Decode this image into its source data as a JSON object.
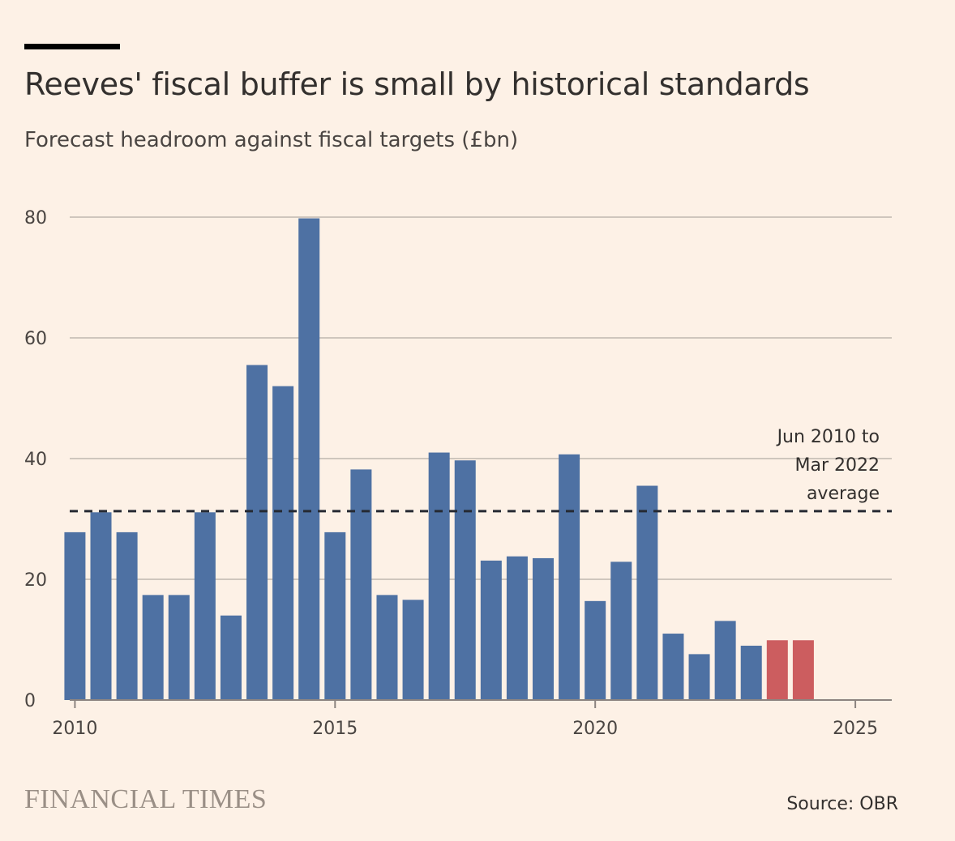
{
  "header": {
    "title": "Reeves' fiscal buffer is small by historical standards",
    "subtitle": "Forecast headroom against fiscal targets (£bn)"
  },
  "footer": {
    "brand": "FINANCIAL TIMES",
    "source": "Source: OBR"
  },
  "colors": {
    "background": "#FDF1E6",
    "bar_primary": "#4E71A3",
    "bar_highlight": "#CC5D5F",
    "average_line": "#262A33",
    "grid": "#CFC6BD"
  },
  "chart_data": {
    "type": "bar",
    "title": "Reeves' fiscal buffer is small by historical standards",
    "subtitle": "Forecast headroom against fiscal targets (£bn)",
    "ylim": [
      0,
      80
    ],
    "xlim": [
      2009.9,
      2025.7
    ],
    "yticks": [
      0,
      20,
      40,
      60,
      80
    ],
    "xticks": [
      {
        "value": 2010,
        "label": "2010"
      },
      {
        "value": 2015,
        "label": "2015"
      },
      {
        "value": 2020,
        "label": "2020"
      },
      {
        "value": 2025,
        "label": "2025"
      }
    ],
    "grid": true,
    "bars": [
      {
        "x": 2010.0,
        "value": 27.8,
        "highlight": false
      },
      {
        "x": 2010.5,
        "value": 31.1,
        "highlight": false
      },
      {
        "x": 2011.0,
        "value": 27.8,
        "highlight": false
      },
      {
        "x": 2011.5,
        "value": 17.4,
        "highlight": false
      },
      {
        "x": 2012.0,
        "value": 17.4,
        "highlight": false
      },
      {
        "x": 2012.5,
        "value": 31.1,
        "highlight": false
      },
      {
        "x": 2013.0,
        "value": 14.0,
        "highlight": false
      },
      {
        "x": 2013.5,
        "value": 55.5,
        "highlight": false
      },
      {
        "x": 2014.0,
        "value": 52.0,
        "highlight": false
      },
      {
        "x": 2014.5,
        "value": 79.8,
        "highlight": false
      },
      {
        "x": 2015.0,
        "value": 27.8,
        "highlight": false
      },
      {
        "x": 2015.5,
        "value": 38.2,
        "highlight": false
      },
      {
        "x": 2016.0,
        "value": 17.4,
        "highlight": false
      },
      {
        "x": 2016.5,
        "value": 16.6,
        "highlight": false
      },
      {
        "x": 2017.0,
        "value": 41.0,
        "highlight": false
      },
      {
        "x": 2017.5,
        "value": 39.7,
        "highlight": false
      },
      {
        "x": 2018.0,
        "value": 23.1,
        "highlight": false
      },
      {
        "x": 2018.5,
        "value": 23.8,
        "highlight": false
      },
      {
        "x": 2019.0,
        "value": 23.5,
        "highlight": false
      },
      {
        "x": 2019.5,
        "value": 40.7,
        "highlight": false
      },
      {
        "x": 2020.0,
        "value": 16.4,
        "highlight": false
      },
      {
        "x": 2020.5,
        "value": 22.9,
        "highlight": false
      },
      {
        "x": 2021.0,
        "value": 35.5,
        "highlight": false
      },
      {
        "x": 2021.5,
        "value": 11.0,
        "highlight": false
      },
      {
        "x": 2022.0,
        "value": 7.6,
        "highlight": false
      },
      {
        "x": 2022.5,
        "value": 13.1,
        "highlight": false
      },
      {
        "x": 2023.0,
        "value": 9.0,
        "highlight": false
      },
      {
        "x": 2023.5,
        "value": 9.9,
        "highlight": true
      },
      {
        "x": 2024.0,
        "value": 9.9,
        "highlight": true
      }
    ],
    "average": {
      "value": 31.3,
      "label_lines": [
        "Jun 2010 to",
        "Mar 2022",
        "average"
      ]
    }
  }
}
